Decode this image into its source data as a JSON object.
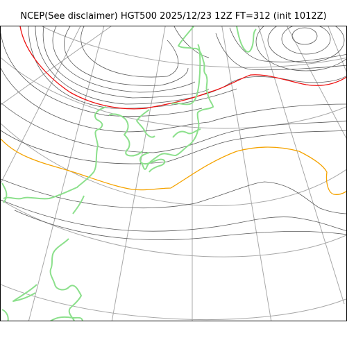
{
  "title": "NCEP(See disclaimer) HGT500 2025/12/23 12Z FT=312 (init 1012Z)",
  "colors": {
    "graticule": "#a8a8a8",
    "contour": "#5a5a5a",
    "highlight_contour_5400": "#ee1111",
    "highlight_contour_5700": "#f5a300",
    "coastline": "#8ce08c",
    "frame": "#000000"
  },
  "map": {
    "field": "HGT500",
    "projection": "polar-stereographic"
  }
}
